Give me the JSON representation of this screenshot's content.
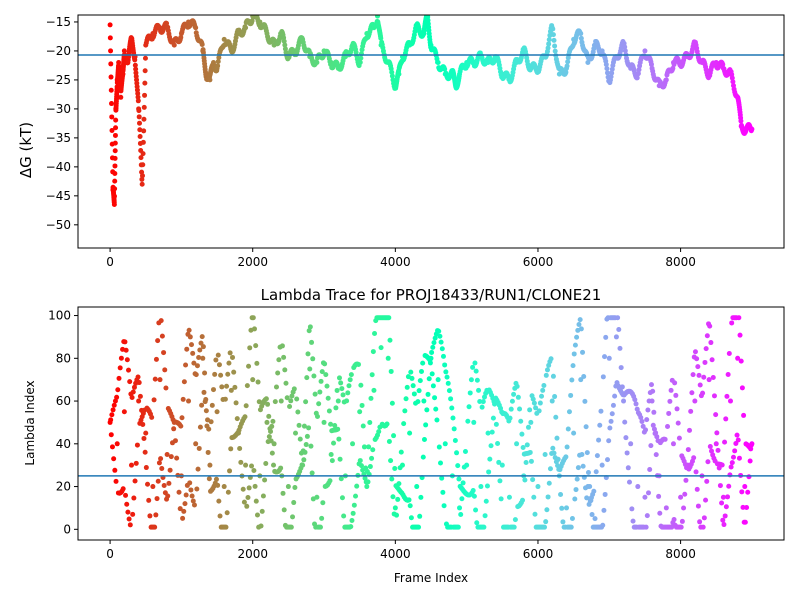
{
  "chart_data": [
    {
      "type": "scatter",
      "title": "",
      "xlabel": "",
      "ylabel": "ΔG (kT)",
      "xlim": [
        -450,
        9450
      ],
      "ylim": [
        -54,
        -13.8
      ],
      "xticks": [
        0,
        2000,
        4000,
        6000,
        8000
      ],
      "xtick_labels": [
        "0",
        "2000",
        "4000",
        "6000",
        "8000"
      ],
      "yticks": [
        -50,
        -45,
        -40,
        -35,
        -30,
        -25,
        -20,
        -15
      ],
      "ytick_labels": [
        "−50",
        "−45",
        "−40",
        "−35",
        "−30",
        "−25",
        "−20",
        "−15"
      ],
      "hline": -20.7,
      "colormap": "rainbow (reversed: early frames red, late frames violet)",
      "frames": 9000,
      "series": [
        {
          "x": [
            0,
            40,
            60,
            80,
            100,
            120,
            150,
            180,
            200,
            250,
            300,
            350,
            400,
            450,
            500,
            600,
            700,
            800,
            900,
            1000,
            1100,
            1200,
            1300,
            1350,
            1400,
            1450,
            1500,
            1600,
            1700,
            1800,
            1900,
            2000,
            2100,
            2200,
            2300,
            2400,
            2500,
            2600,
            2700,
            2800,
            2900,
            3000,
            3100,
            3200,
            3300,
            3400,
            3500,
            3600,
            3700,
            3750,
            3800,
            3900,
            4000,
            4050,
            4100,
            4200,
            4300,
            4400,
            4450,
            4500,
            4600,
            4700,
            4800,
            4850,
            4900,
            5000,
            5100,
            5200,
            5300,
            5400,
            5500,
            5600,
            5700,
            5800,
            5900,
            6000,
            6100,
            6200,
            6300,
            6400,
            6500,
            6600,
            6700,
            6800,
            6900,
            7000,
            7100,
            7200,
            7300,
            7400,
            7500,
            7600,
            7700,
            7800,
            7900,
            8000,
            8100,
            8200,
            8300,
            8400,
            8500,
            8600,
            8700,
            8800,
            8850,
            8900,
            9000
          ],
          "y": [
            -15.5,
            -44,
            -46.5,
            -30,
            -25,
            -22,
            -28,
            -24,
            -20,
            -22,
            -18,
            -21,
            -30,
            -43,
            -19,
            -17,
            -16,
            -16,
            -19,
            -17,
            -15,
            -16,
            -20,
            -24,
            -25,
            -22,
            -23,
            -18,
            -20,
            -17,
            -16,
            -14,
            -15,
            -17,
            -19,
            -17,
            -21,
            -20,
            -18,
            -21,
            -22,
            -20,
            -22,
            -23,
            -21,
            -19,
            -22,
            -17,
            -16,
            -14,
            -19,
            -22,
            -26,
            -24,
            -21,
            -19,
            -16,
            -17,
            -14,
            -19,
            -22,
            -24,
            -24,
            -26,
            -24,
            -22,
            -22,
            -21,
            -22,
            -21,
            -24,
            -25,
            -22,
            -20,
            -23,
            -23,
            -21,
            -16,
            -24,
            -23,
            -18,
            -17,
            -22,
            -19,
            -20,
            -25,
            -21,
            -19,
            -23,
            -24,
            -20,
            -23,
            -26,
            -25,
            -22,
            -22,
            -21,
            -19,
            -22,
            -24,
            -22,
            -23,
            -24,
            -28,
            -33,
            -33.5,
            -33.5
          ]
        }
      ]
    },
    {
      "type": "scatter",
      "title": "Lambda Trace for PROJ18433/RUN1/CLONE21",
      "xlabel": "Frame Index",
      "ylabel": "Lambda Index",
      "xlim": [
        -450,
        9450
      ],
      "ylim": [
        -5,
        104
      ],
      "xticks": [
        0,
        2000,
        4000,
        6000,
        8000
      ],
      "xtick_labels": [
        "0",
        "2000",
        "4000",
        "6000",
        "8000"
      ],
      "yticks": [
        0,
        20,
        40,
        60,
        80,
        100
      ],
      "ytick_labels": [
        "0",
        "20",
        "40",
        "60",
        "80",
        "100"
      ],
      "hline": 25,
      "colormap": "rainbow (reversed: early frames red, late frames violet)",
      "frames": 9000,
      "series": [
        {
          "x": [
            0,
            100,
            200,
            300,
            400,
            500,
            600,
            700,
            800,
            900,
            1000,
            1100,
            1200,
            1300,
            1400,
            1500,
            1600,
            1700,
            1800,
            1900,
            2000,
            2100,
            2200,
            2300,
            2400,
            2500,
            2600,
            2700,
            2800,
            2900,
            3000,
            3100,
            3200,
            3300,
            3400,
            3500,
            3600,
            3700,
            3800,
            3900,
            4000,
            4100,
            4200,
            4300,
            4400,
            4500,
            4600,
            4700,
            4800,
            4900,
            5000,
            5100,
            5200,
            5300,
            5400,
            5500,
            5600,
            5700,
            5800,
            5900,
            6000,
            6100,
            6200,
            6300,
            6400,
            6500,
            6600,
            6700,
            6800,
            6900,
            7000,
            7100,
            7200,
            7300,
            7400,
            7500,
            7600,
            7700,
            7800,
            7900,
            8000,
            8100,
            8200,
            8300,
            8400,
            8500,
            8600,
            8700,
            8800,
            8900,
            9000
          ],
          "y": [
            50,
            40,
            55,
            30,
            60,
            45,
            20,
            70,
            35,
            50,
            25,
            60,
            40,
            80,
            30,
            55,
            20,
            65,
            45,
            30,
            70,
            25,
            50,
            40,
            60,
            20,
            45,
            30,
            75,
            15,
            50,
            35,
            60,
            25,
            40,
            55,
            20,
            65,
            85,
            80,
            10,
            30,
            45,
            20,
            60,
            80,
            70,
            40,
            25,
            10,
            30,
            50,
            20,
            45,
            60,
            30,
            15,
            40,
            25,
            50,
            20,
            35,
            60,
            25,
            10,
            45,
            70,
            20,
            5,
            30,
            80,
            90,
            60,
            40,
            20,
            15,
            60,
            25,
            10,
            40,
            15,
            30,
            60,
            25,
            70,
            40,
            15,
            60,
            80,
            20,
            40
          ]
        }
      ]
    }
  ]
}
